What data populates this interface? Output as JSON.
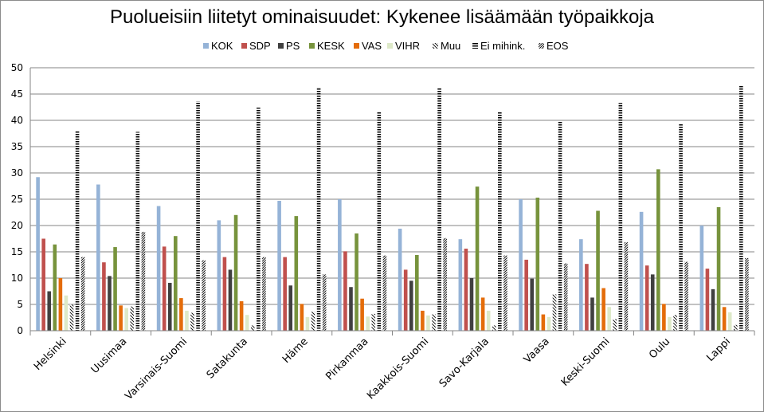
{
  "chart_data": {
    "type": "bar",
    "title": "Puolueisiin liitetyt ominaisuudet: Kykenee lisäämään työpaikkoja",
    "xlabel": "",
    "ylabel": "",
    "ylim": [
      0,
      50
    ],
    "yticks": [
      0,
      5,
      10,
      15,
      20,
      25,
      30,
      35,
      40,
      45,
      50
    ],
    "grid": true,
    "legend_position": "top",
    "categories": [
      "Helsinki",
      "Uusimaa",
      "Varsinais-Suomi",
      "Satakunta",
      "Häme",
      "Pirkanmaa",
      "Kaakkois-Suomi",
      "Savo-Karjala",
      "Vaasa",
      "Keski-Suomi",
      "Oulu",
      "Lappi"
    ],
    "series": [
      {
        "name": "KOK",
        "color": "#95b3d7",
        "pattern": "solid",
        "values": [
          29.2,
          27.8,
          23.7,
          21.0,
          24.7,
          25.0,
          19.4,
          17.4,
          25.0,
          17.4,
          22.6,
          20.0
        ]
      },
      {
        "name": "SDP",
        "color": "#c0504d",
        "pattern": "solid",
        "values": [
          17.5,
          13.0,
          16.0,
          14.0,
          14.0,
          15.1,
          11.6,
          15.6,
          13.5,
          12.7,
          12.4,
          11.8
        ]
      },
      {
        "name": "PS",
        "color": "#404040",
        "pattern": "solid",
        "values": [
          7.5,
          10.4,
          9.1,
          11.6,
          8.6,
          8.3,
          9.5,
          10.0,
          9.9,
          6.3,
          10.7,
          7.9
        ]
      },
      {
        "name": "KESK",
        "color": "#77933c",
        "pattern": "solid",
        "values": [
          16.4,
          15.9,
          18.0,
          22.0,
          21.8,
          18.5,
          14.4,
          27.4,
          25.3,
          22.8,
          30.7,
          23.5
        ]
      },
      {
        "name": "VAS",
        "color": "#e46c0a",
        "pattern": "solid",
        "values": [
          10.0,
          4.8,
          6.2,
          5.6,
          5.1,
          6.1,
          3.8,
          6.3,
          3.1,
          8.1,
          5.1,
          4.5
        ]
      },
      {
        "name": "VIHR",
        "color": "#dde9c8",
        "pattern": "solid",
        "values": [
          6.7,
          4.3,
          3.8,
          3.0,
          2.6,
          2.7,
          2.9,
          3.8,
          2.6,
          4.5,
          2.6,
          3.5
        ]
      },
      {
        "name": "Muu",
        "color": "#000000",
        "pattern": "diag-wide",
        "values": [
          5.0,
          4.6,
          3.4,
          1.0,
          3.6,
          3.2,
          3.1,
          1.0,
          6.9,
          2.2,
          3.0,
          1.1
        ]
      },
      {
        "name": "Ei mihink.",
        "color": "#000000",
        "pattern": "horizontal",
        "values": [
          38.1,
          37.8,
          43.6,
          42.4,
          46.3,
          41.6,
          46.1,
          41.6,
          39.8,
          43.3,
          39.4,
          46.6
        ]
      },
      {
        "name": "EOS",
        "color": "#000000",
        "pattern": "diag-dense",
        "values": [
          14.0,
          18.8,
          13.4,
          14.0,
          10.7,
          14.3,
          17.6,
          14.3,
          12.8,
          16.8,
          13.1,
          13.8
        ]
      }
    ]
  }
}
